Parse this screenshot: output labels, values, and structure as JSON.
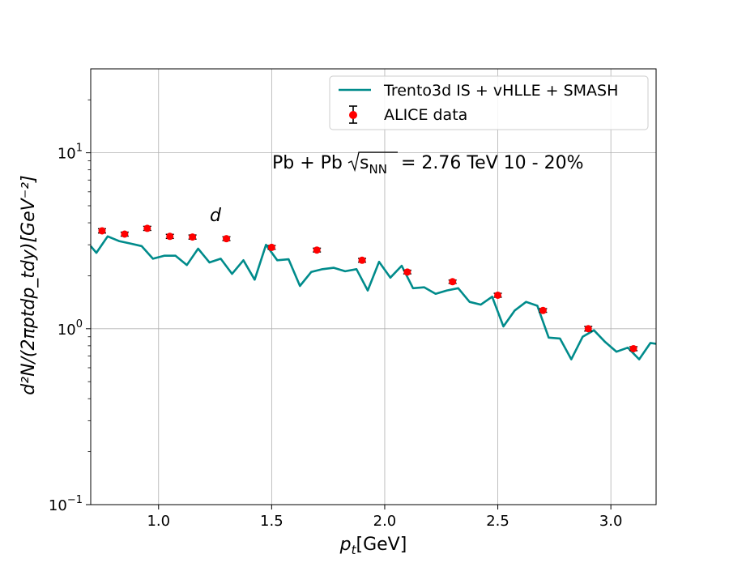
{
  "chart_data": {
    "type": "line",
    "xlabel_var": "p",
    "xlabel_sub": "t",
    "xlabel_unit": "[GeV]",
    "ylabel": "d²N/(2πptdp_tdy)[GeV⁻²]",
    "xlim": [
      0.7,
      3.2
    ],
    "ylim": [
      0.1,
      30
    ],
    "yscale": "log",
    "grid": true,
    "x_ticks": [
      "1.0",
      "1.5",
      "2.0",
      "2.5",
      "3.0"
    ],
    "y_ticks": [
      {
        "value": 0.1,
        "base": "10",
        "exp": "−1"
      },
      {
        "value": 1,
        "base": "10",
        "exp": "0"
      },
      {
        "value": 10,
        "base": "10",
        "exp": "1"
      }
    ],
    "annotation_collision": "Pb + Pb",
    "annotation_sqrt": "s",
    "annotation_sqrt_sub": "NN",
    "annotation_energy": "= 2.76 TeV 10 - 20%",
    "annotation_particle": "d",
    "legend_position": "upper right",
    "series": [
      {
        "name": "Trento3d IS + vHLLE + SMASH",
        "kind": "line",
        "color": "#008b8b",
        "x": [
          0.7,
          0.725,
          0.775,
          0.825,
          0.875,
          0.925,
          0.975,
          1.025,
          1.075,
          1.125,
          1.175,
          1.225,
          1.275,
          1.325,
          1.375,
          1.425,
          1.475,
          1.525,
          1.575,
          1.625,
          1.675,
          1.725,
          1.775,
          1.825,
          1.875,
          1.925,
          1.975,
          2.025,
          2.075,
          2.125,
          2.175,
          2.225,
          2.275,
          2.325,
          2.375,
          2.425,
          2.475,
          2.525,
          2.575,
          2.625,
          2.675,
          2.725,
          2.775,
          2.825,
          2.875,
          2.925,
          2.975,
          3.025,
          3.075,
          3.125,
          3.175,
          3.2
        ],
        "y": [
          2.95,
          2.7,
          3.35,
          3.15,
          3.05,
          2.95,
          2.5,
          2.6,
          2.6,
          2.3,
          2.85,
          2.38,
          2.5,
          2.05,
          2.45,
          1.9,
          3.0,
          2.45,
          2.48,
          1.75,
          2.1,
          2.18,
          2.22,
          2.12,
          2.18,
          1.65,
          2.4,
          1.95,
          2.28,
          1.7,
          1.72,
          1.58,
          1.65,
          1.7,
          1.42,
          1.37,
          1.52,
          1.03,
          1.27,
          1.42,
          1.35,
          0.89,
          0.88,
          0.67,
          0.9,
          0.98,
          0.84,
          0.74,
          0.78,
          0.67,
          0.83,
          0.82
        ]
      },
      {
        "name": "ALICE data",
        "kind": "errorbar",
        "color": "#ff0000",
        "x": [
          0.75,
          0.85,
          0.95,
          1.05,
          1.15,
          1.3,
          1.5,
          1.7,
          1.9,
          2.1,
          2.3,
          2.5,
          2.7,
          2.9,
          3.1
        ],
        "y": [
          3.6,
          3.45,
          3.72,
          3.35,
          3.32,
          3.25,
          2.9,
          2.8,
          2.45,
          2.1,
          1.85,
          1.55,
          1.27,
          1.0,
          0.77
        ],
        "yerr": [
          0.1,
          0.09,
          0.1,
          0.09,
          0.09,
          0.08,
          0.07,
          0.07,
          0.06,
          0.05,
          0.04,
          0.04,
          0.03,
          0.03,
          0.02
        ]
      }
    ]
  }
}
